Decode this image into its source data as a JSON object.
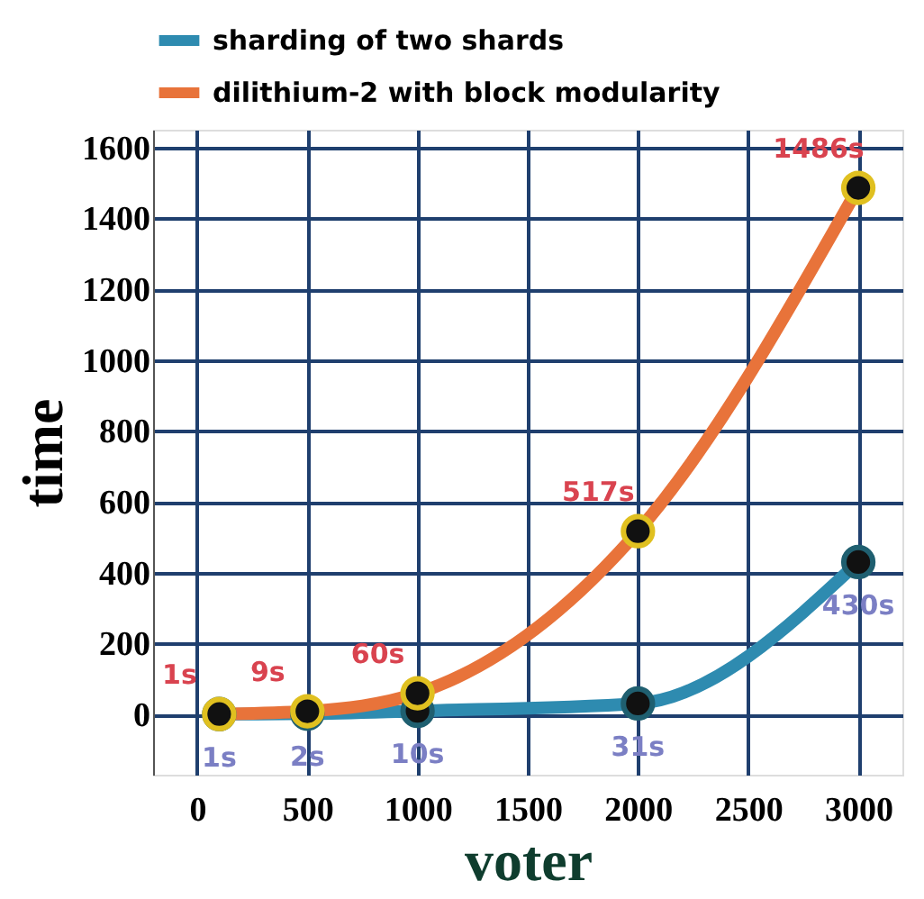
{
  "chart_data": {
    "type": "line",
    "xlabel": "voter",
    "ylabel": "time",
    "x": [
      100,
      500,
      1000,
      2000,
      3000
    ],
    "series": [
      {
        "name": "sharding of two shards",
        "color": "#2e8bb0",
        "values": [
          1,
          2,
          10,
          31,
          430
        ],
        "value_labels": [
          "1s",
          "2s",
          "10s",
          "31s",
          "430s"
        ]
      },
      {
        "name": "dilithium-2 with block modularity",
        "color": "#e8733a",
        "values": [
          1,
          9,
          60,
          517,
          1486
        ],
        "value_labels": [
          "1s",
          "9s",
          "60s",
          "517s",
          "1486s"
        ]
      }
    ],
    "xlim": [
      -200,
      3200
    ],
    "xticks": [
      0,
      500,
      1000,
      1500,
      2000,
      2500,
      3000
    ],
    "ylim": [
      -170,
      1650
    ],
    "yticks": [
      0,
      200,
      400,
      600,
      800,
      1000,
      1200,
      1400,
      1600
    ],
    "grid": true,
    "legend": "top left",
    "marker": "circle",
    "line_style": "solid"
  }
}
